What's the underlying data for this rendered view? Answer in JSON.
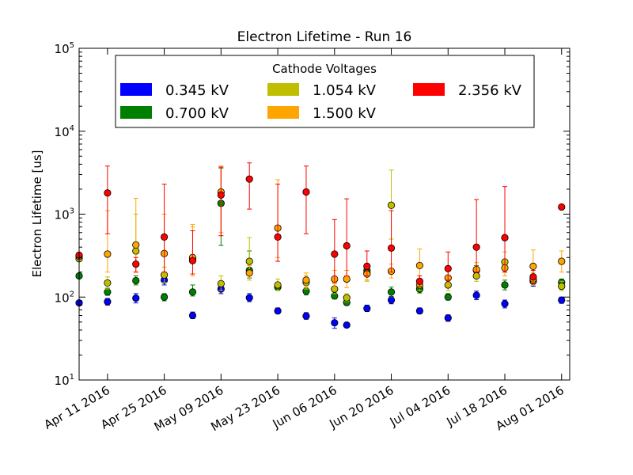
{
  "chart_data": {
    "type": "scatter",
    "title": "Electron Lifetime - Run 16",
    "ylabel": "Electron Lifetime [us]",
    "xlabel": "",
    "yscale": "log",
    "ylim": [
      10,
      100000
    ],
    "xlim": [
      "2016-04-04",
      "2016-08-03"
    ],
    "y_ticks": [
      {
        "value": 10,
        "base": "10",
        "exp": "1"
      },
      {
        "value": 100,
        "base": "10",
        "exp": "2"
      },
      {
        "value": 1000,
        "base": "10",
        "exp": "3"
      },
      {
        "value": 10000,
        "base": "10",
        "exp": "4"
      },
      {
        "value": 100000,
        "base": "10",
        "exp": "5"
      }
    ],
    "x_ticks": [
      {
        "date": "2016-04-11",
        "label": "Apr 11 2016"
      },
      {
        "date": "2016-04-25",
        "label": "Apr 25 2016"
      },
      {
        "date": "2016-05-09",
        "label": "May 09 2016"
      },
      {
        "date": "2016-05-23",
        "label": "May 23 2016"
      },
      {
        "date": "2016-06-06",
        "label": "Jun 06 2016"
      },
      {
        "date": "2016-06-20",
        "label": "Jun 20 2016"
      },
      {
        "date": "2016-07-04",
        "label": "Jul 04 2016"
      },
      {
        "date": "2016-07-18",
        "label": "Jul 18 2016"
      },
      {
        "date": "2016-08-01",
        "label": "Aug 01 2016"
      }
    ],
    "grid": false,
    "legend": {
      "title": "Cathode Voltages",
      "placement": "top",
      "columns": 3
    },
    "series": [
      {
        "name": "0.345 kV",
        "color": "#0000ff",
        "points": [
          {
            "x": "2016-04-04",
            "y": 85,
            "lo": 85,
            "hi": 85
          },
          {
            "x": "2016-04-11",
            "y": 88,
            "lo": 80,
            "hi": 96
          },
          {
            "x": "2016-04-18",
            "y": 97,
            "lo": 85,
            "hi": 110
          },
          {
            "x": "2016-04-25",
            "y": 160,
            "lo": 140,
            "hi": 185
          },
          {
            "x": "2016-05-02",
            "y": 60,
            "lo": 55,
            "hi": 66
          },
          {
            "x": "2016-05-09",
            "y": 125,
            "lo": 110,
            "hi": 140
          },
          {
            "x": "2016-05-16",
            "y": 98,
            "lo": 88,
            "hi": 110
          },
          {
            "x": "2016-05-23",
            "y": 68,
            "lo": 63,
            "hi": 74
          },
          {
            "x": "2016-05-30",
            "y": 59,
            "lo": 54,
            "hi": 65
          },
          {
            "x": "2016-06-06",
            "y": 49,
            "lo": 42,
            "hi": 56
          },
          {
            "x": "2016-06-09",
            "y": 46,
            "lo": 44,
            "hi": 49
          },
          {
            "x": "2016-06-14",
            "y": 73,
            "lo": 67,
            "hi": 80
          },
          {
            "x": "2016-06-20",
            "y": 92,
            "lo": 83,
            "hi": 102
          },
          {
            "x": "2016-06-27",
            "y": 68,
            "lo": 63,
            "hi": 74
          },
          {
            "x": "2016-07-04",
            "y": 56,
            "lo": 51,
            "hi": 61
          },
          {
            "x": "2016-07-11",
            "y": 105,
            "lo": 93,
            "hi": 118
          },
          {
            "x": "2016-07-18",
            "y": 83,
            "lo": 74,
            "hi": 92
          },
          {
            "x": "2016-07-25",
            "y": 155,
            "lo": 135,
            "hi": 175
          },
          {
            "x": "2016-08-01",
            "y": 92,
            "lo": 84,
            "hi": 100
          }
        ]
      },
      {
        "name": "0.700 kV",
        "color": "#008000",
        "points": [
          {
            "x": "2016-04-04",
            "y": 180,
            "lo": 180,
            "hi": 180
          },
          {
            "x": "2016-04-11",
            "y": 115,
            "lo": 105,
            "hi": 128
          },
          {
            "x": "2016-04-18",
            "y": 158,
            "lo": 140,
            "hi": 180
          },
          {
            "x": "2016-04-25",
            "y": 100,
            "lo": 90,
            "hi": 110
          },
          {
            "x": "2016-05-02",
            "y": 115,
            "lo": 103,
            "hi": 140
          },
          {
            "x": "2016-05-09",
            "y": 1350,
            "lo": 420,
            "hi": 3600
          },
          {
            "x": "2016-05-16",
            "y": 210,
            "lo": 170,
            "hi": 360
          },
          {
            "x": "2016-05-23",
            "y": 132,
            "lo": 120,
            "hi": 147
          },
          {
            "x": "2016-05-30",
            "y": 118,
            "lo": 106,
            "hi": 131
          },
          {
            "x": "2016-06-06",
            "y": 103,
            "lo": 95,
            "hi": 112
          },
          {
            "x": "2016-06-09",
            "y": 86,
            "lo": 80,
            "hi": 93
          },
          {
            "x": "2016-06-14",
            "y": 210,
            "lo": 180,
            "hi": 250
          },
          {
            "x": "2016-06-20",
            "y": 115,
            "lo": 100,
            "hi": 132
          },
          {
            "x": "2016-06-27",
            "y": 125,
            "lo": 112,
            "hi": 140
          },
          {
            "x": "2016-07-04",
            "y": 100,
            "lo": 92,
            "hi": 110
          },
          {
            "x": "2016-07-11",
            "y": 210,
            "lo": 185,
            "hi": 240
          },
          {
            "x": "2016-07-18",
            "y": 140,
            "lo": 122,
            "hi": 160
          },
          {
            "x": "2016-07-25",
            "y": 160,
            "lo": 140,
            "hi": 185
          },
          {
            "x": "2016-08-01",
            "y": 150,
            "lo": 135,
            "hi": 165
          }
        ]
      },
      {
        "name": "1.054 kV",
        "color": "#bfbf00",
        "points": [
          {
            "x": "2016-04-04",
            "y": 290,
            "lo": 290,
            "hi": 290
          },
          {
            "x": "2016-04-11",
            "y": 148,
            "lo": 125,
            "hi": 175
          },
          {
            "x": "2016-04-18",
            "y": 360,
            "lo": 200,
            "hi": 1000
          },
          {
            "x": "2016-04-25",
            "y": 185,
            "lo": 150,
            "hi": 230
          },
          {
            "x": "2016-05-02",
            "y": 290,
            "lo": 180,
            "hi": 700
          },
          {
            "x": "2016-05-09",
            "y": 145,
            "lo": 120,
            "hi": 180
          },
          {
            "x": "2016-05-16",
            "y": 270,
            "lo": 200,
            "hi": 520
          },
          {
            "x": "2016-05-23",
            "y": 140,
            "lo": 120,
            "hi": 165
          },
          {
            "x": "2016-05-30",
            "y": 150,
            "lo": 125,
            "hi": 180
          },
          {
            "x": "2016-06-06",
            "y": 125,
            "lo": 110,
            "hi": 145
          },
          {
            "x": "2016-06-09",
            "y": 98,
            "lo": 88,
            "hi": 110
          },
          {
            "x": "2016-06-14",
            "y": 195,
            "lo": 160,
            "hi": 240
          },
          {
            "x": "2016-06-20",
            "y": 1280,
            "lo": 500,
            "hi": 3400
          },
          {
            "x": "2016-06-27",
            "y": 140,
            "lo": 120,
            "hi": 165
          },
          {
            "x": "2016-07-04",
            "y": 140,
            "lo": 120,
            "hi": 165
          },
          {
            "x": "2016-07-11",
            "y": 180,
            "lo": 155,
            "hi": 210
          },
          {
            "x": "2016-07-18",
            "y": 265,
            "lo": 200,
            "hi": 350
          },
          {
            "x": "2016-07-25",
            "y": 165,
            "lo": 140,
            "hi": 195
          },
          {
            "x": "2016-08-01",
            "y": 135,
            "lo": 120,
            "hi": 155
          }
        ]
      },
      {
        "name": "1.500 kV",
        "color": "#ffa500",
        "points": [
          {
            "x": "2016-04-04",
            "y": 310,
            "lo": 310,
            "hi": 310
          },
          {
            "x": "2016-04-11",
            "y": 330,
            "lo": 200,
            "hi": 1100
          },
          {
            "x": "2016-04-18",
            "y": 425,
            "lo": 200,
            "hi": 1550
          },
          {
            "x": "2016-04-25",
            "y": 335,
            "lo": 200,
            "hi": 1000
          },
          {
            "x": "2016-05-02",
            "y": 300,
            "lo": 180,
            "hi": 750
          },
          {
            "x": "2016-05-09",
            "y": 1850,
            "lo": 600,
            "hi": 3800
          },
          {
            "x": "2016-05-16",
            "y": 195,
            "lo": 160,
            "hi": 240
          },
          {
            "x": "2016-05-23",
            "y": 680,
            "lo": 300,
            "hi": 2600
          },
          {
            "x": "2016-05-30",
            "y": 160,
            "lo": 130,
            "hi": 195
          },
          {
            "x": "2016-06-06",
            "y": 165,
            "lo": 130,
            "hi": 210
          },
          {
            "x": "2016-06-09",
            "y": 165,
            "lo": 130,
            "hi": 210
          },
          {
            "x": "2016-06-14",
            "y": 190,
            "lo": 155,
            "hi": 240
          },
          {
            "x": "2016-06-20",
            "y": 205,
            "lo": 170,
            "hi": 250
          },
          {
            "x": "2016-06-27",
            "y": 240,
            "lo": 150,
            "hi": 380
          },
          {
            "x": "2016-07-04",
            "y": 170,
            "lo": 140,
            "hi": 210
          },
          {
            "x": "2016-07-11",
            "y": 215,
            "lo": 175,
            "hi": 260
          },
          {
            "x": "2016-07-18",
            "y": 225,
            "lo": 180,
            "hi": 280
          },
          {
            "x": "2016-07-25",
            "y": 235,
            "lo": 150,
            "hi": 370
          },
          {
            "x": "2016-08-01",
            "y": 270,
            "lo": 200,
            "hi": 360
          }
        ]
      },
      {
        "name": "2.356 kV",
        "color": "#ff0000",
        "points": [
          {
            "x": "2016-04-04",
            "y": 320,
            "lo": 320,
            "hi": 320
          },
          {
            "x": "2016-04-11",
            "y": 1800,
            "lo": 580,
            "hi": 3800
          },
          {
            "x": "2016-04-18",
            "y": 250,
            "lo": 200,
            "hi": 300
          },
          {
            "x": "2016-04-25",
            "y": 530,
            "lo": 200,
            "hi": 2300
          },
          {
            "x": "2016-05-02",
            "y": 275,
            "lo": 190,
            "hi": 630
          },
          {
            "x": "2016-05-09",
            "y": 1700,
            "lo": 550,
            "hi": 3700
          },
          {
            "x": "2016-05-16",
            "y": 2650,
            "lo": 1150,
            "hi": 4150
          },
          {
            "x": "2016-05-23",
            "y": 530,
            "lo": 270,
            "hi": 2300
          },
          {
            "x": "2016-05-30",
            "y": 1850,
            "lo": 580,
            "hi": 3800
          },
          {
            "x": "2016-06-06",
            "y": 330,
            "lo": 150,
            "hi": 860
          },
          {
            "x": "2016-06-09",
            "y": 415,
            "lo": 180,
            "hi": 1530
          },
          {
            "x": "2016-06-14",
            "y": 235,
            "lo": 180,
            "hi": 360
          },
          {
            "x": "2016-06-20",
            "y": 390,
            "lo": 200,
            "hi": 1100
          },
          {
            "x": "2016-06-27",
            "y": 155,
            "lo": 135,
            "hi": 180
          },
          {
            "x": "2016-07-04",
            "y": 220,
            "lo": 160,
            "hi": 350
          },
          {
            "x": "2016-07-11",
            "y": 400,
            "lo": 200,
            "hi": 1500
          },
          {
            "x": "2016-07-18",
            "y": 520,
            "lo": 200,
            "hi": 2150
          },
          {
            "x": "2016-07-25",
            "y": 175,
            "lo": 145,
            "hi": 210
          },
          {
            "x": "2016-08-01",
            "y": 1220,
            "lo": 1220,
            "hi": 1220
          }
        ]
      }
    ]
  }
}
